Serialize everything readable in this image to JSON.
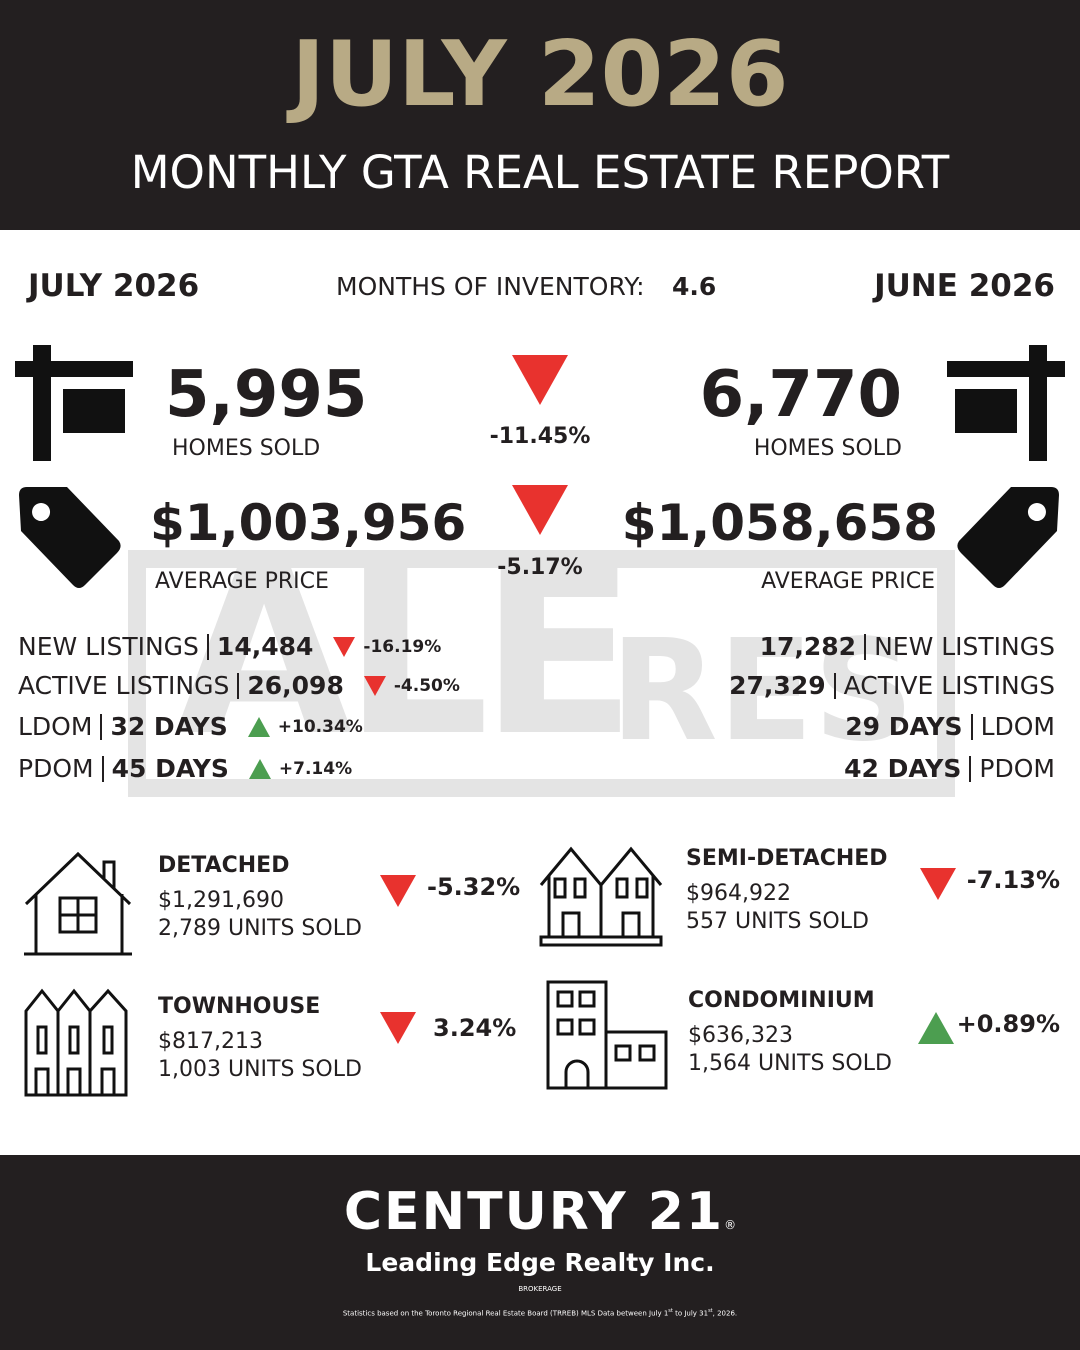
{
  "header": {
    "title": "JULY 2026",
    "subtitle": "MONTHLY GTA REAL ESTATE REPORT"
  },
  "summary": {
    "current_month": "JULY 2026",
    "inventory_label": "MONTHS OF INVENTORY:",
    "inventory_value": "4.6",
    "previous_month": "JUNE 2026"
  },
  "arrow_colors": {
    "down": "#e8322e",
    "up": "#4c9e50"
  },
  "headline": [
    {
      "current": "5,995",
      "current_label": "HOMES SOLD",
      "change": "-11.45%",
      "direction": "down",
      "previous": "6,770",
      "previous_label": "HOMES SOLD"
    },
    {
      "current": "$1,003,956",
      "current_label": "AVERAGE PRICE",
      "change": "-5.17%",
      "direction": "down",
      "previous": "$1,058,658",
      "previous_label": "AVERAGE PRICE"
    }
  ],
  "watermark": {
    "big": "ALE",
    "small": "RES"
  },
  "listings": [
    {
      "label": "NEW LISTINGS",
      "current": "14,484",
      "change": "-16.19%",
      "direction": "down",
      "previous": "17,282"
    },
    {
      "label": "ACTIVE LISTINGS",
      "current": "26,098",
      "change": "-4.50%",
      "direction": "down",
      "previous": "27,329"
    },
    {
      "label": "LDOM",
      "current": "32 DAYS",
      "change": "+10.34%",
      "direction": "up",
      "previous": "29 DAYS"
    },
    {
      "label": "PDOM",
      "current": "45 DAYS",
      "change": "+7.14%",
      "direction": "up",
      "previous": "42 DAYS"
    }
  ],
  "property_types": [
    {
      "name": "DETACHED",
      "price": "$1,291,690",
      "units": "2,789 UNITS SOLD",
      "change": "-5.32%",
      "direction": "down"
    },
    {
      "name": "SEMI-DETACHED",
      "price": "$964,922",
      "units": "557 UNITS SOLD",
      "change": "-7.13%",
      "direction": "down"
    },
    {
      "name": "TOWNHOUSE",
      "price": "$817,213",
      "units": "1,003 UNITS SOLD",
      "change": "3.24%",
      "direction": "down"
    },
    {
      "name": "CONDOMINIUM",
      "price": "$636,323",
      "units": "1,564 UNITS SOLD",
      "change": "+0.89%",
      "direction": "up"
    }
  ],
  "footer": {
    "brand": "CENTURY 21",
    "registered": "®",
    "company": "Leading Edge Realty Inc.",
    "brokerage": "BROKERAGE",
    "note_parts": [
      "Statistics based on the Toronto Regional Real Estate Board (TRREB) MLS Data between July 1",
      "st",
      " to July 31",
      "st",
      ", 2026."
    ]
  }
}
